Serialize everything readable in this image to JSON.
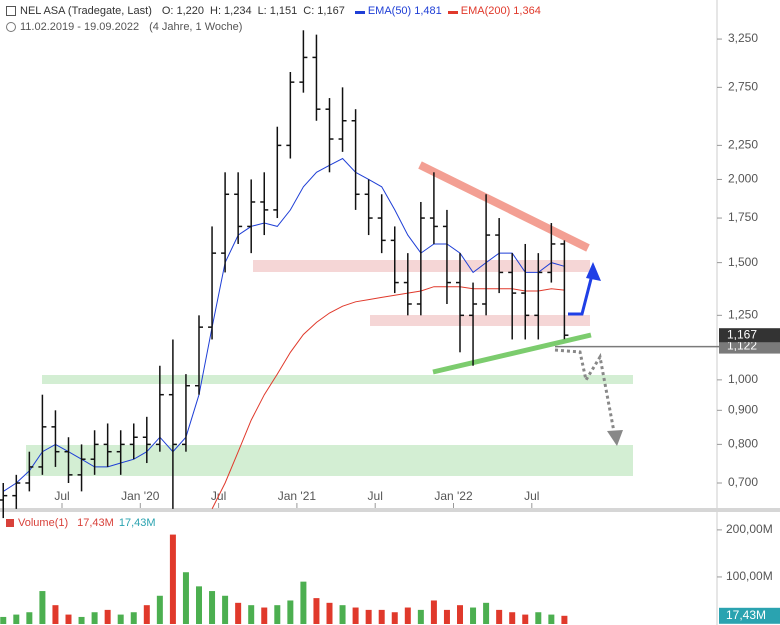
{
  "chart_data": [
    {
      "type": "ohlc",
      "title": "NEL ASA (Tradegate, Last)",
      "ohlc": [
        {
          "name": "O:",
          "value": "1,220"
        },
        {
          "name": "H:",
          "value": "1,234"
        },
        {
          "name": "L:",
          "value": "1,151"
        },
        {
          "name": "C:",
          "value": "1,167"
        }
      ],
      "subtitle": [
        "11.02.2019 - 19.09.2022",
        "(4 Jahre, 1 Woche)"
      ],
      "x": [
        "2019-02",
        "2019-03",
        "2019-04",
        "2019-05",
        "2019-06",
        "2019-07",
        "2019-08",
        "2019-09",
        "2019-10",
        "2019-11",
        "2019-12",
        "2020-01",
        "2020-02",
        "2020-03",
        "2020-04",
        "2020-05",
        "2020-06",
        "2020-07",
        "2020-08",
        "2020-09",
        "2020-10",
        "2020-11",
        "2020-12",
        "2021-01",
        "2021-02",
        "2021-03",
        "2021-04",
        "2021-05",
        "2021-06",
        "2021-07",
        "2021-08",
        "2021-09",
        "2021-10",
        "2021-11",
        "2021-12",
        "2022-01",
        "2022-02",
        "2022-03",
        "2022-04",
        "2022-05",
        "2022-06",
        "2022-07",
        "2022-08",
        "2022-09"
      ],
      "open": [
        0.66,
        0.67,
        0.7,
        0.74,
        0.85,
        0.78,
        0.72,
        0.76,
        0.8,
        0.78,
        0.8,
        0.82,
        0.8,
        0.95,
        0.8,
        0.98,
        1.2,
        1.55,
        1.9,
        1.7,
        1.85,
        1.8,
        2.25,
        2.8,
        3.05,
        2.55,
        2.3,
        2.45,
        1.9,
        1.75,
        1.62,
        1.4,
        1.3,
        1.75,
        1.7,
        1.4,
        1.25,
        1.3,
        1.65,
        1.45,
        1.35,
        1.25,
        1.45,
        1.6
      ],
      "high": [
        0.7,
        0.72,
        0.78,
        0.95,
        0.9,
        0.82,
        0.8,
        0.84,
        0.86,
        0.84,
        0.86,
        0.88,
        1.05,
        1.15,
        1.02,
        1.25,
        1.7,
        2.05,
        2.05,
        2.0,
        2.05,
        2.4,
        2.9,
        3.35,
        3.3,
        2.65,
        2.75,
        2.55,
        2.0,
        1.9,
        1.7,
        1.55,
        1.85,
        2.05,
        1.8,
        1.55,
        1.4,
        1.9,
        1.75,
        1.55,
        1.6,
        1.55,
        1.72,
        1.62
      ],
      "low": [
        0.62,
        0.64,
        0.68,
        0.72,
        0.74,
        0.7,
        0.68,
        0.72,
        0.74,
        0.72,
        0.76,
        0.75,
        0.78,
        0.64,
        0.78,
        0.95,
        1.15,
        1.45,
        1.6,
        1.55,
        1.65,
        1.75,
        2.15,
        2.7,
        2.45,
        2.05,
        2.2,
        1.8,
        1.65,
        1.55,
        1.35,
        1.25,
        1.25,
        1.6,
        1.3,
        1.1,
        1.05,
        1.25,
        1.35,
        1.15,
        1.15,
        1.15,
        1.4,
        1.151
      ],
      "close": [
        0.67,
        0.7,
        0.74,
        0.85,
        0.78,
        0.72,
        0.76,
        0.8,
        0.78,
        0.8,
        0.82,
        0.8,
        0.95,
        0.8,
        0.98,
        1.2,
        1.55,
        1.9,
        1.7,
        1.85,
        1.8,
        2.25,
        2.8,
        3.05,
        2.55,
        2.3,
        2.45,
        1.9,
        1.75,
        1.62,
        1.4,
        1.3,
        1.75,
        1.7,
        1.4,
        1.25,
        1.3,
        1.65,
        1.45,
        1.35,
        1.25,
        1.45,
        1.6,
        1.167
      ],
      "color": "#111111",
      "series": [
        {
          "name": "EMA(50)",
          "last": "1,481",
          "color": "#1f3fd6",
          "values": [
            0.68,
            0.7,
            0.73,
            0.78,
            0.8,
            0.78,
            0.76,
            0.74,
            0.74,
            0.75,
            0.76,
            0.78,
            0.82,
            0.78,
            0.82,
            0.95,
            1.2,
            1.5,
            1.65,
            1.7,
            1.72,
            1.7,
            1.8,
            1.95,
            2.05,
            2.1,
            2.15,
            2.05,
            2.0,
            1.95,
            1.8,
            1.65,
            1.55,
            1.6,
            1.6,
            1.55,
            1.45,
            1.5,
            1.55,
            1.55,
            1.45,
            1.45,
            1.5,
            1.481
          ]
        },
        {
          "name": "EMA(200)",
          "last": "1,364",
          "color": "#e0392b",
          "values": [
            null,
            null,
            null,
            null,
            null,
            null,
            null,
            null,
            null,
            null,
            null,
            null,
            null,
            null,
            null,
            null,
            0.64,
            0.7,
            0.78,
            0.87,
            0.95,
            1.02,
            1.1,
            1.17,
            1.22,
            1.26,
            1.29,
            1.31,
            1.32,
            1.33,
            1.34,
            1.35,
            1.36,
            1.38,
            1.38,
            1.38,
            1.37,
            1.37,
            1.37,
            1.37,
            1.36,
            1.36,
            1.37,
            1.364
          ]
        }
      ],
      "log": true,
      "ylim": [
        0.642,
        3.72
      ],
      "yticks": [
        {
          "value": 0.7,
          "label": "0,700"
        },
        {
          "value": 0.8,
          "label": "0,800"
        },
        {
          "value": 0.9,
          "label": "0,900"
        },
        {
          "value": 1,
          "label": "1,000"
        },
        {
          "value": 1.25,
          "label": "1,250"
        },
        {
          "value": 1.5,
          "label": "1,500"
        },
        {
          "value": 1.75,
          "label": "1,750"
        },
        {
          "value": 2,
          "label": "2,000"
        },
        {
          "value": 2.25,
          "label": "2,250"
        },
        {
          "value": 2.75,
          "label": "2,750"
        },
        {
          "value": 3.25,
          "label": "3,250"
        }
      ],
      "xticks": [
        {
          "value": "2019-07",
          "label": "Jul"
        },
        {
          "value": "2020-01",
          "label": "Jan '20"
        },
        {
          "value": "2020-07",
          "label": "Jul"
        },
        {
          "value": "2021-01",
          "label": "Jan '21"
        },
        {
          "value": "2021-07",
          "label": "Jul"
        },
        {
          "value": "2022-01",
          "label": "Jan '22"
        },
        {
          "value": "2022-07",
          "label": "Jul"
        }
      ],
      "grid": false,
      "price_labels": [
        {
          "value": 1.167,
          "label": "1,167",
          "color": "#333333"
        },
        {
          "value": 1.122,
          "label": "1,122",
          "color": "#7a7a7a"
        }
      ]
    },
    {
      "type": "bar",
      "title": "Volume(1)",
      "legend": [
        {
          "text": "17,43M",
          "color": "#d8413a"
        },
        {
          "text": "17,43M",
          "color": "#2aa3b0"
        }
      ],
      "values": [
        15,
        20,
        25,
        70,
        40,
        20,
        15,
        25,
        30,
        20,
        25,
        40,
        60,
        190,
        110,
        80,
        70,
        60,
        45,
        40,
        35,
        40,
        50,
        90,
        55,
        45,
        40,
        35,
        30,
        30,
        25,
        35,
        30,
        50,
        30,
        40,
        35,
        45,
        30,
        25,
        20,
        25,
        20,
        17.43
      ],
      "up_color": "#4caf50",
      "down_color": "#e0392b",
      "ylim": [
        0,
        238
      ],
      "yticks": [
        {
          "value": 100,
          "label": "100,00M"
        },
        {
          "value": 200,
          "label": "200,00M"
        }
      ],
      "last_label": {
        "value": 17.43,
        "label": "17,43M",
        "color": "#2aa3b0"
      }
    }
  ]
}
